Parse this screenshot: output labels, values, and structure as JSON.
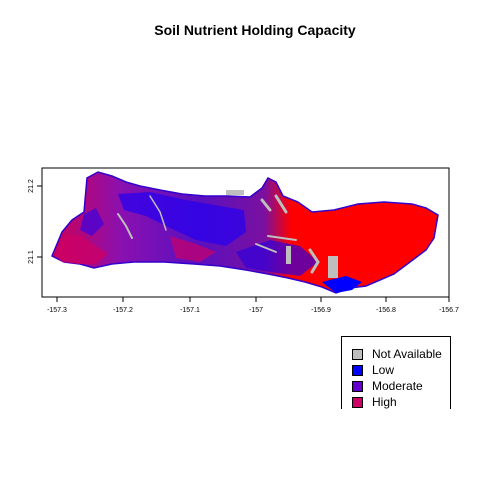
{
  "title": "Soil Nutrient Holding Capacity",
  "axes": {
    "x_ticks": [
      "-157.3",
      "-157.2",
      "-157.1",
      "-157",
      "-156.9",
      "-156.8",
      "-156.7"
    ],
    "y_ticks": [
      "21.1",
      "21.2"
    ]
  },
  "legend": [
    {
      "label": "Not Available",
      "color": "#bebebe"
    },
    {
      "label": "Low",
      "color": "#0000ff"
    },
    {
      "label": "Moderate",
      "color": "#6600cc"
    },
    {
      "label": "High",
      "color": "#cc0066"
    }
  ],
  "colors": {
    "very_high": "#ff0000",
    "low": "#0000ff",
    "moderate": "#6600cc",
    "high": "#cc0066",
    "not_available": "#bebebe"
  }
}
